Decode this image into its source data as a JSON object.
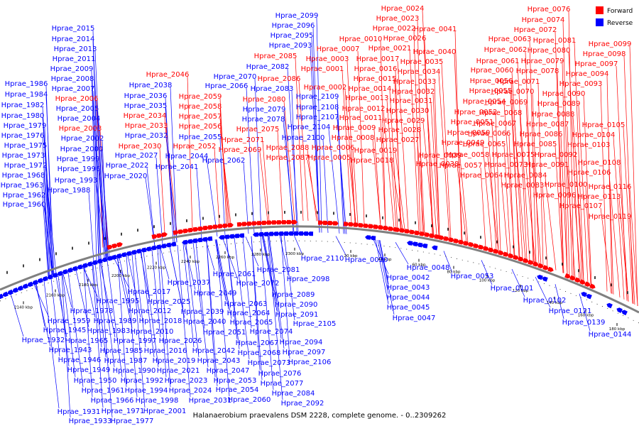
{
  "caption": "Halanaerobium praevalens DSM 2228, complete genome. - 0..2309262",
  "legend": {
    "forward": "Forward",
    "reverse": "Reverse"
  },
  "colors": {
    "forward": "#ff0000",
    "reverse": "#0000ff",
    "backbone": "#808080",
    "tick": "#000000"
  },
  "scale": {
    "ticks": [
      "20 kbp",
      "40 kbp",
      "60 kbp",
      "80 kbp",
      "100 kbp",
      "120 kbp",
      "140 kbp",
      "160 kbp",
      "180 kbp",
      "2140 kbp",
      "2160 kbp",
      "2180 kbp",
      "2200 kbp",
      "2220 kbp",
      "2240 kbp",
      "2260 kbp",
      "2280 kbp",
      "2300 kbp"
    ]
  },
  "forward_labels": [
    "Hprae_0076",
    "Hprae_0074",
    "Hprae_0072",
    "Hprae_0081",
    "Hprae_0080",
    "Hprae_0079",
    "Hprae_0078",
    "Hprae_0099",
    "Hprae_0098",
    "Hprae_0097",
    "Hprae_0094",
    "Hprae_0093",
    "Hprae_0090",
    "Hprae_0089",
    "Hprae_0088",
    "Hprae_0087",
    "Hprae_0086",
    "Hprae_0085",
    "Hprae_0105",
    "Hprae_0104",
    "Hprae_0103",
    "Hprae_0092",
    "Hprae_0091",
    "Hprae_0108",
    "Hprae_0106",
    "Hprae_0100",
    "Hprae_0096",
    "Hprae_0116",
    "Hprae_0113",
    "Hprae_0107",
    "Hprae_0119",
    "Hprae_0063",
    "Hprae_0062",
    "Hprae_0061",
    "Hprae_0060",
    "Hprae_0071",
    "Hprae_0070",
    "Hprae_0069",
    "Hprae_0068",
    "Hprae_0067",
    "Hprae_0066",
    "Hprae_0065",
    "Hprae_0075",
    "Hprae_0073",
    "Hprae_0084",
    "Hprae_0083",
    "Hprae_0064",
    "Hprae_0056",
    "Hprae_0055",
    "Hprae_0054",
    "Hprae_0052",
    "Hprae_0051",
    "Hprae_0050",
    "Hprae_0049",
    "Hprae_0058",
    "Hprae_0057",
    "Hprae_0041",
    "Hprae_0040",
    "Hprae_0035",
    "Hprae_0034",
    "Hprae_0033",
    "Hprae_0032",
    "Hprae_0031",
    "Hprae_0030",
    "Hprae_0029",
    "Hprae_0028",
    "Hprae_0027",
    "Hprae_0039",
    "Hprae_0038",
    "Hprae_0024",
    "Hprae_0023",
    "Hprae_0022",
    "Hprae_0026",
    "Hprae_0021",
    "Hprae_0017",
    "Hprae_0016",
    "Hprae_0015",
    "Hprae_0014",
    "Hprae_0013",
    "Hprae_0012",
    "Hprae_0011",
    "Hprae_0009",
    "Hprae_0008",
    "Hprae_0019",
    "Hprae_0018",
    "Hprae_0010",
    "Hprae_0007",
    "Hprae_0003",
    "Hprae_0001",
    "Hprae_0002",
    "Hprae_0006",
    "Hprae_0005",
    "Hprae_2085",
    "Hprae_2086",
    "Hprae_2080",
    "Hprae_2075",
    "Hprae_2071",
    "Hprae_2069",
    "Hprae_2088",
    "Hprae_2087",
    "Hprae_2046",
    "Hprae_2059",
    "Hprae_2058",
    "Hprae_2057",
    "Hprae_2056",
    "Hprae_2052",
    "Hprae_2006",
    "Hprae_2003",
    "Hprae_2034",
    "Hprae_2033",
    "Hprae_2030"
  ],
  "reverse_top_labels": [
    "Hprae_2099",
    "Hprae_2096",
    "Hprae_2095",
    "Hprae_2093",
    "Hprae_2082",
    "Hprae_2083",
    "Hprae_2109",
    "Hprae_2108",
    "Hprae_2107",
    "Hprae_2104",
    "Hprae_2100",
    "Hprae_2070",
    "Hprae_2066",
    "Hprae_2079",
    "Hprae_2078",
    "Hprae_2062",
    "Hprae_2038",
    "Hprae_2036",
    "Hprae_2035",
    "Hprae_2032",
    "Hprae_2055",
    "Hprae_2027",
    "Hprae_2022",
    "Hprae_2020",
    "Hprae_2044",
    "Hprae_2041",
    "Hprae_2015",
    "Hprae_2014",
    "Hprae_2013",
    "Hprae_2011",
    "Hprae_2009",
    "Hprae_2008",
    "Hprae_2007",
    "Hprae_2005",
    "Hprae_2004",
    "Hprae_2002",
    "Hprae_2000",
    "Hprae_1999",
    "Hprae_1996",
    "Hprae_1993",
    "Hprae_1988",
    "Hprae_1986",
    "Hprae_1984",
    "Hprae_1982",
    "Hprae_1980",
    "Hprae_1979",
    "Hprae_1976",
    "Hprae_1975",
    "Hprae_1973",
    "Hprae_1972",
    "Hprae_1968",
    "Hprae_1963",
    "Hprae_1962",
    "Hprae_1960"
  ],
  "reverse_bottom_labels": [
    "Hprae_2110",
    "Hprae_0020",
    "Hprae_0048",
    "Hprae_0042",
    "Hprae_0043",
    "Hprae_0044",
    "Hprae_0045",
    "Hprae_0047",
    "Hprae_0053",
    "Hprae_0101",
    "Hprae_0102",
    "Hprae_0121",
    "Hprae_0139",
    "Hprae_0144",
    "Hprae_2081",
    "Hprae_2072",
    "Hprae_2098",
    "Hprae_2089",
    "Hprae_2090",
    "Hprae_2091",
    "Hprae_2061",
    "Hprae_2063",
    "Hprae_2064",
    "Hprae_2065",
    "Hprae_2074",
    "Hprae_2105",
    "Hprae_2094",
    "Hprae_2097",
    "Hprae_2106",
    "Hprae_2067",
    "Hprae_2068",
    "Hprae_2073",
    "Hprae_2076",
    "Hprae_2077",
    "Hprae_2084",
    "Hprae_2092",
    "Hprae_2037",
    "Hprae_2049",
    "Hprae_2039",
    "Hprae_2040",
    "Hprae_2051",
    "Hprae_2042",
    "Hprae_2043",
    "Hprae_2047",
    "Hprae_2053",
    "Hprae_2054",
    "Hprae_2060",
    "Hprae_2017",
    "Hprae_2025",
    "Hprae_2012",
    "Hprae_2018",
    "Hprae_2010",
    "Hprae_2026",
    "Hprae_2016",
    "Hprae_2019",
    "Hprae_2021",
    "Hprae_2023",
    "Hprae_2024",
    "Hprae_2031",
    "Hprae_1995",
    "Hprae_1978",
    "Hprae_1989",
    "Hprae_1983",
    "Hprae_1997",
    "Hprae_1985",
    "Hprae_1987",
    "Hprae_1990",
    "Hprae_1992",
    "Hprae_1994",
    "Hprae_1998",
    "Hprae_2001",
    "Hprae_1959",
    "Hprae_1945",
    "Hprae_1965",
    "Hprae_1932",
    "Hprae_1943",
    "Hprae_1946",
    "Hprae_1949",
    "Hprae_1950",
    "Hprae_1961",
    "Hprae_1966",
    "Hprae_1971",
    "Hprae_1977",
    "Hprae_1931",
    "Hprae_1933"
  ]
}
